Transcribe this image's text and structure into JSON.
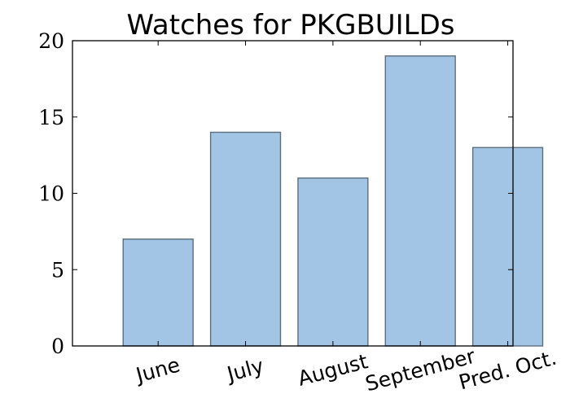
{
  "chart_data": {
    "type": "bar",
    "title": "Watches for PKGBUILDs",
    "xlabel": "",
    "ylabel": "",
    "categories": [
      "June",
      "July",
      "August",
      "September",
      "Pred. Oct."
    ],
    "values": [
      7,
      14,
      11,
      19,
      13
    ],
    "ylim": [
      0,
      20
    ],
    "yticks": [
      "0",
      "5",
      "10",
      "15",
      "20"
    ],
    "bar_color": "#a2c4e5",
    "grid": false,
    "legend": "none"
  }
}
